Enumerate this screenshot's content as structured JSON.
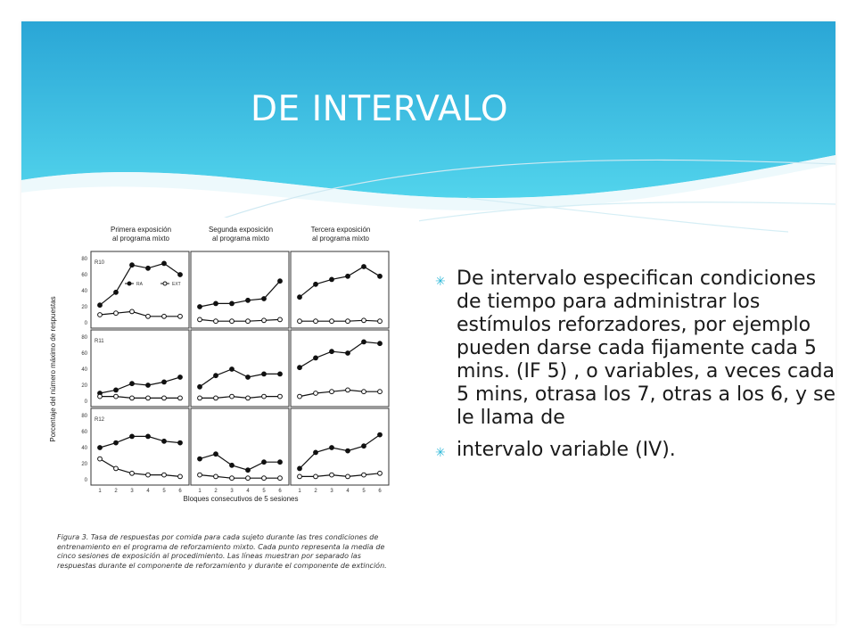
{
  "slide": {
    "title": "DE INTERVALO",
    "colors": {
      "header_top": "#2aa6d6",
      "header_bottom": "#52d4ec",
      "bullet_mark": "#2bb8d9"
    },
    "bullets": [
      {
        "icon": "asterisk-bullet-icon",
        "text": "De intervalo especifican condiciones de tiempo para administrar los estímulos reforzadores, por ejemplo pueden darse cada fijamente cada 5 mins. (IF 5) , o variables, a veces cada 5 mins, otrasa los 7, otras a los 6,  y se le llama de"
      },
      {
        "icon": "asterisk-bullet-icon",
        "text": "intervalo  variable (IV)."
      }
    ]
  },
  "figure": {
    "column_titles": [
      "Primera exposición al programa mixto",
      "Segunda exposición al programa mixto",
      "Tercera exposición al programa mixto"
    ],
    "row_labels": [
      "R10",
      "R11",
      "R12"
    ],
    "y_axis_label": "Porcentaje del número máximo de respuestas",
    "x_axis_label": "Bloques consecutivos de 5 sesiones",
    "y_ticks": [
      "0",
      "20",
      "40",
      "60",
      "80"
    ],
    "x_ticks": [
      "1",
      "2",
      "3",
      "4",
      "5",
      "6"
    ],
    "legend": [
      "RA",
      "EXT"
    ],
    "caption": "Figura 3. Tasa de respuestas por comida para cada sujeto durante las tres condiciones de entrenamiento en el programa de reforzamiento mixto. Cada punto representa la media de cinco sesiones de exposición al procedimiento. Las líneas muestran por separado las respuestas durante el componente de reforzamiento y durante el componente de extinción."
  },
  "chart_data": {
    "type": "line",
    "title": "",
    "xlabel": "Bloques consecutivos de 5 sesiones",
    "ylabel": "Porcentaje del número máximo de respuestas",
    "x": [
      1,
      2,
      3,
      4,
      5,
      6
    ],
    "ylim": [
      0,
      80
    ],
    "panels": [
      {
        "row": "R10",
        "col": 1,
        "series": [
          {
            "name": "RA",
            "values": [
              22,
              38,
              72,
              68,
              74,
              60
            ]
          },
          {
            "name": "EXT",
            "values": [
              10,
              12,
              14,
              8,
              8,
              8
            ]
          }
        ]
      },
      {
        "row": "R10",
        "col": 2,
        "series": [
          {
            "name": "RA",
            "values": [
              20,
              24,
              24,
              28,
              30,
              52
            ]
          },
          {
            "name": "EXT",
            "values": [
              4,
              2,
              2,
              2,
              3,
              4
            ]
          }
        ]
      },
      {
        "row": "R10",
        "col": 3,
        "series": [
          {
            "name": "RA",
            "values": [
              32,
              48,
              54,
              58,
              70,
              58
            ]
          },
          {
            "name": "EXT",
            "values": [
              2,
              2,
              2,
              2,
              3,
              2
            ]
          }
        ]
      },
      {
        "row": "R11",
        "col": 1,
        "series": [
          {
            "name": "RA",
            "values": [
              10,
              14,
              22,
              20,
              24,
              30
            ]
          },
          {
            "name": "EXT",
            "values": [
              6,
              6,
              4,
              4,
              4,
              4
            ]
          }
        ]
      },
      {
        "row": "R11",
        "col": 2,
        "series": [
          {
            "name": "RA",
            "values": [
              18,
              32,
              40,
              30,
              34,
              34
            ]
          },
          {
            "name": "EXT",
            "values": [
              4,
              4,
              6,
              4,
              6,
              6
            ]
          }
        ]
      },
      {
        "row": "R11",
        "col": 3,
        "series": [
          {
            "name": "RA",
            "values": [
              42,
              54,
              62,
              60,
              74,
              72
            ]
          },
          {
            "name": "EXT",
            "values": [
              6,
              10,
              12,
              14,
              12,
              12
            ]
          }
        ]
      },
      {
        "row": "R12",
        "col": 1,
        "series": [
          {
            "name": "RA",
            "values": [
              40,
              46,
              54,
              54,
              48,
              46
            ]
          },
          {
            "name": "EXT",
            "values": [
              26,
              14,
              8,
              6,
              6,
              4
            ]
          }
        ]
      },
      {
        "row": "R12",
        "col": 2,
        "series": [
          {
            "name": "RA",
            "values": [
              26,
              32,
              18,
              12,
              22,
              22
            ]
          },
          {
            "name": "EXT",
            "values": [
              6,
              4,
              2,
              2,
              2,
              2
            ]
          }
        ]
      },
      {
        "row": "R12",
        "col": 3,
        "series": [
          {
            "name": "RA",
            "values": [
              14,
              34,
              40,
              36,
              42,
              56
            ]
          },
          {
            "name": "EXT",
            "values": [
              4,
              4,
              6,
              4,
              6,
              8
            ]
          }
        ]
      }
    ],
    "grid": false
  }
}
